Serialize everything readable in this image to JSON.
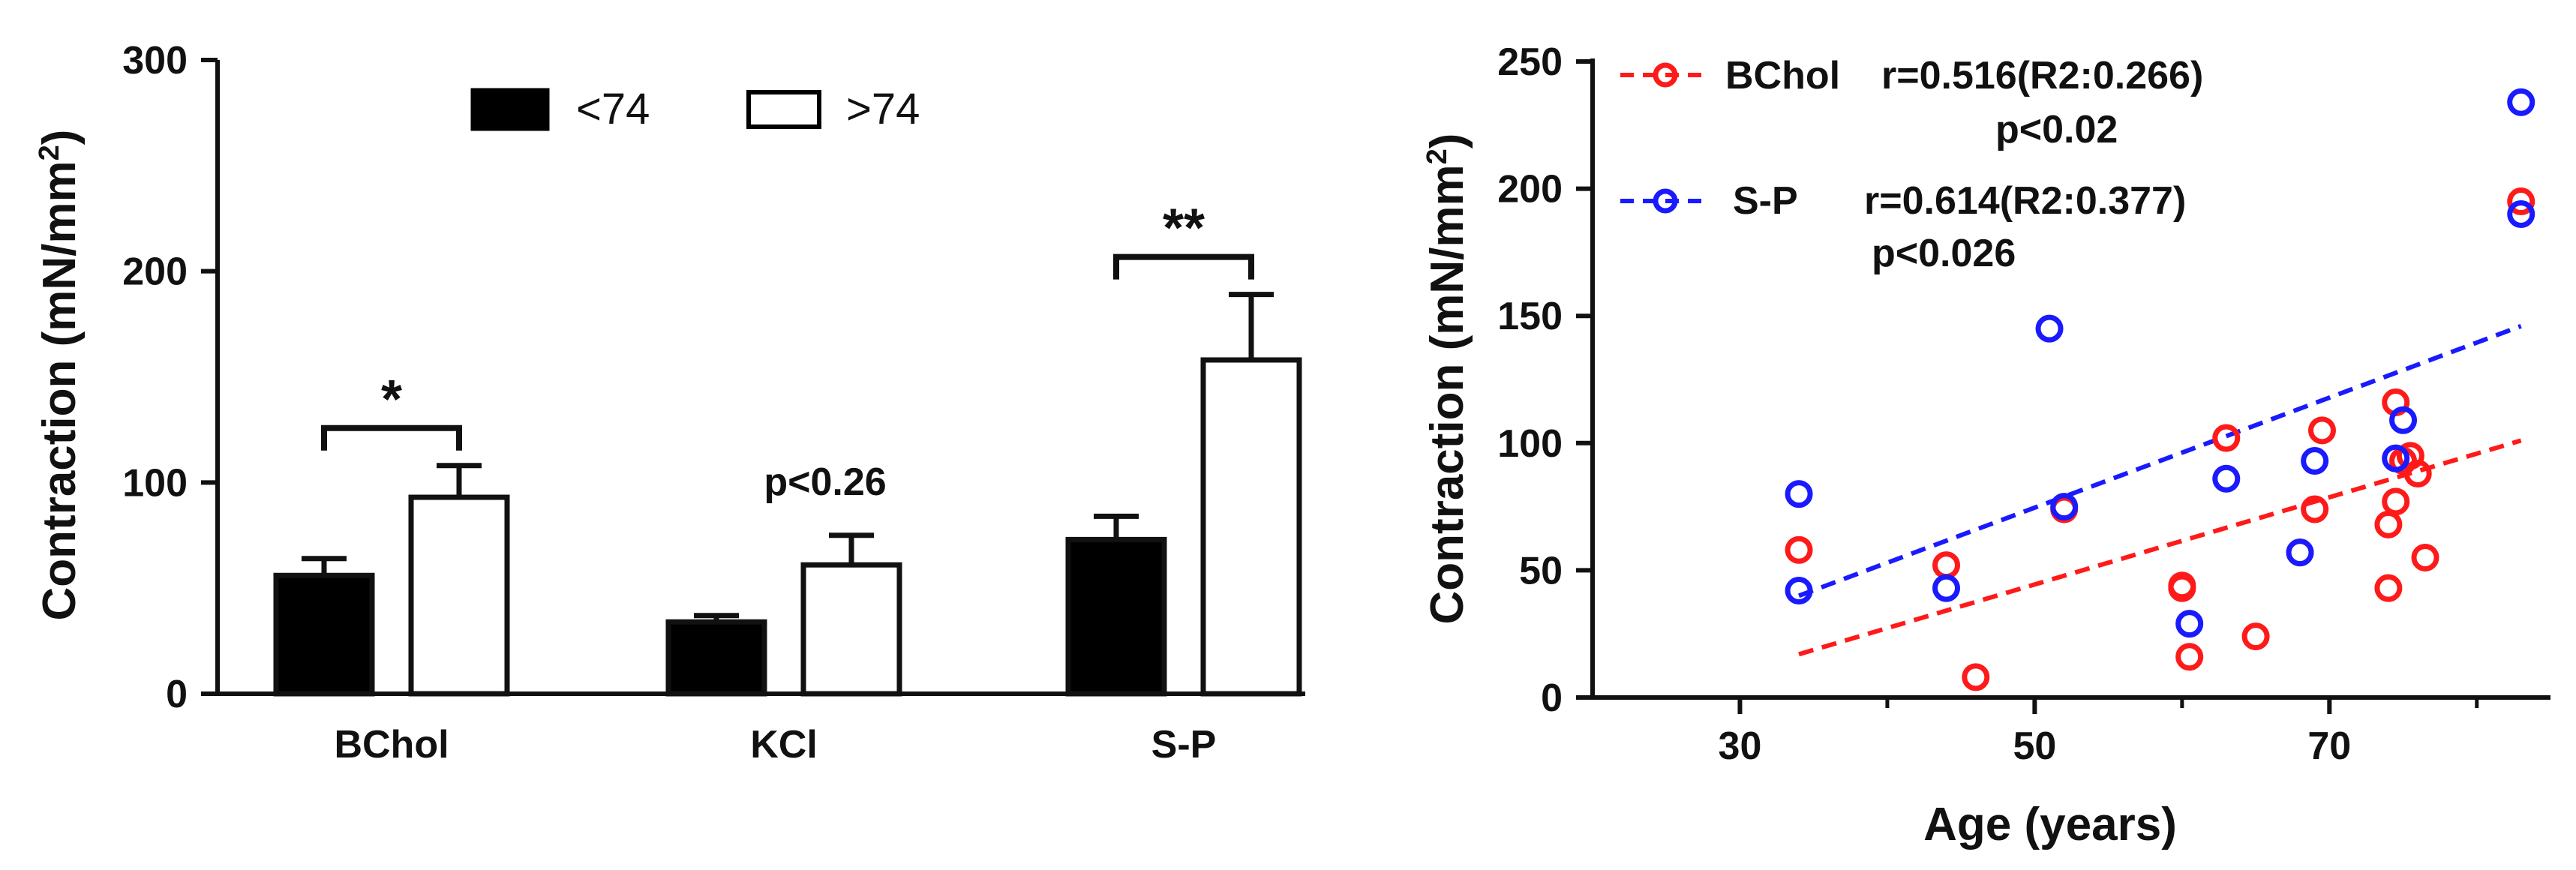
{
  "chart_data": [
    {
      "type": "bar",
      "categories": [
        "BChol",
        "KCl",
        "S-P"
      ],
      "series": [
        {
          "name": "<74",
          "values": [
            56,
            34,
            73
          ],
          "errors": [
            8,
            3,
            11
          ],
          "fill": "#000000"
        },
        {
          "name": ">74",
          "values": [
            93,
            61,
            158
          ],
          "errors": [
            15,
            14,
            31
          ],
          "fill": "#ffffff"
        }
      ],
      "ylabel_main": "Contraction (mN/mm",
      "ylabel_sup": "2",
      "ylabel_end": ")",
      "ylim": [
        0,
        300
      ],
      "yticks": [
        "0",
        "100",
        "200",
        "300"
      ],
      "legend_position": "top",
      "significance": [
        {
          "category": "BChol",
          "label": "*"
        },
        {
          "category": "S-P",
          "label": "**"
        }
      ],
      "annotations": [
        {
          "category": "KCl",
          "text": "p<0.26"
        }
      ]
    },
    {
      "type": "scatter",
      "xlabel": "Age (years)",
      "ylabel_main": "Contraction (mN/mm",
      "ylabel_sup": "2",
      "ylabel_end": ")",
      "xlim": [
        20,
        85
      ],
      "ylim": [
        0,
        250
      ],
      "xticks": [
        "30",
        "50",
        "70"
      ],
      "yticks": [
        "0",
        "50",
        "100",
        "150",
        "200",
        "250"
      ],
      "series": [
        {
          "name": "BChol",
          "color": "#ff1a1a",
          "stats_line1": "r=0.516(R2:0.266)",
          "stats_line2": "p<0.02",
          "points": [
            [
              34,
              58
            ],
            [
              44,
              52
            ],
            [
              46,
              8
            ],
            [
              52,
              74
            ],
            [
              60,
              44
            ],
            [
              60,
              43
            ],
            [
              60.5,
              16
            ],
            [
              63,
              102
            ],
            [
              65,
              24
            ],
            [
              68,
              57
            ],
            [
              69,
              74
            ],
            [
              69.5,
              105
            ],
            [
              74,
              43
            ],
            [
              74,
              68
            ],
            [
              74.5,
              116
            ],
            [
              74.5,
              77
            ],
            [
              75,
              93
            ],
            [
              75.5,
              95
            ],
            [
              76,
              88
            ],
            [
              76.5,
              55
            ],
            [
              83,
              195
            ]
          ],
          "fit": [
            [
              34,
              17
            ],
            [
              83,
              101
            ]
          ]
        },
        {
          "name": "S-P",
          "color": "#1a1aff",
          "stats_line1": "r=0.614(R2:0.377)",
          "stats_line2": "p<0.026",
          "points": [
            [
              34,
              80
            ],
            [
              34,
              42
            ],
            [
              44,
              43
            ],
            [
              51,
              145
            ],
            [
              52,
              75
            ],
            [
              60.5,
              29
            ],
            [
              63,
              86
            ],
            [
              68,
              57
            ],
            [
              69,
              93
            ],
            [
              74.5,
              94
            ],
            [
              75,
              109
            ],
            [
              83,
              234
            ],
            [
              83,
              190
            ]
          ],
          "fit": [
            [
              34,
              40
            ],
            [
              83,
              146
            ]
          ]
        }
      ]
    }
  ]
}
